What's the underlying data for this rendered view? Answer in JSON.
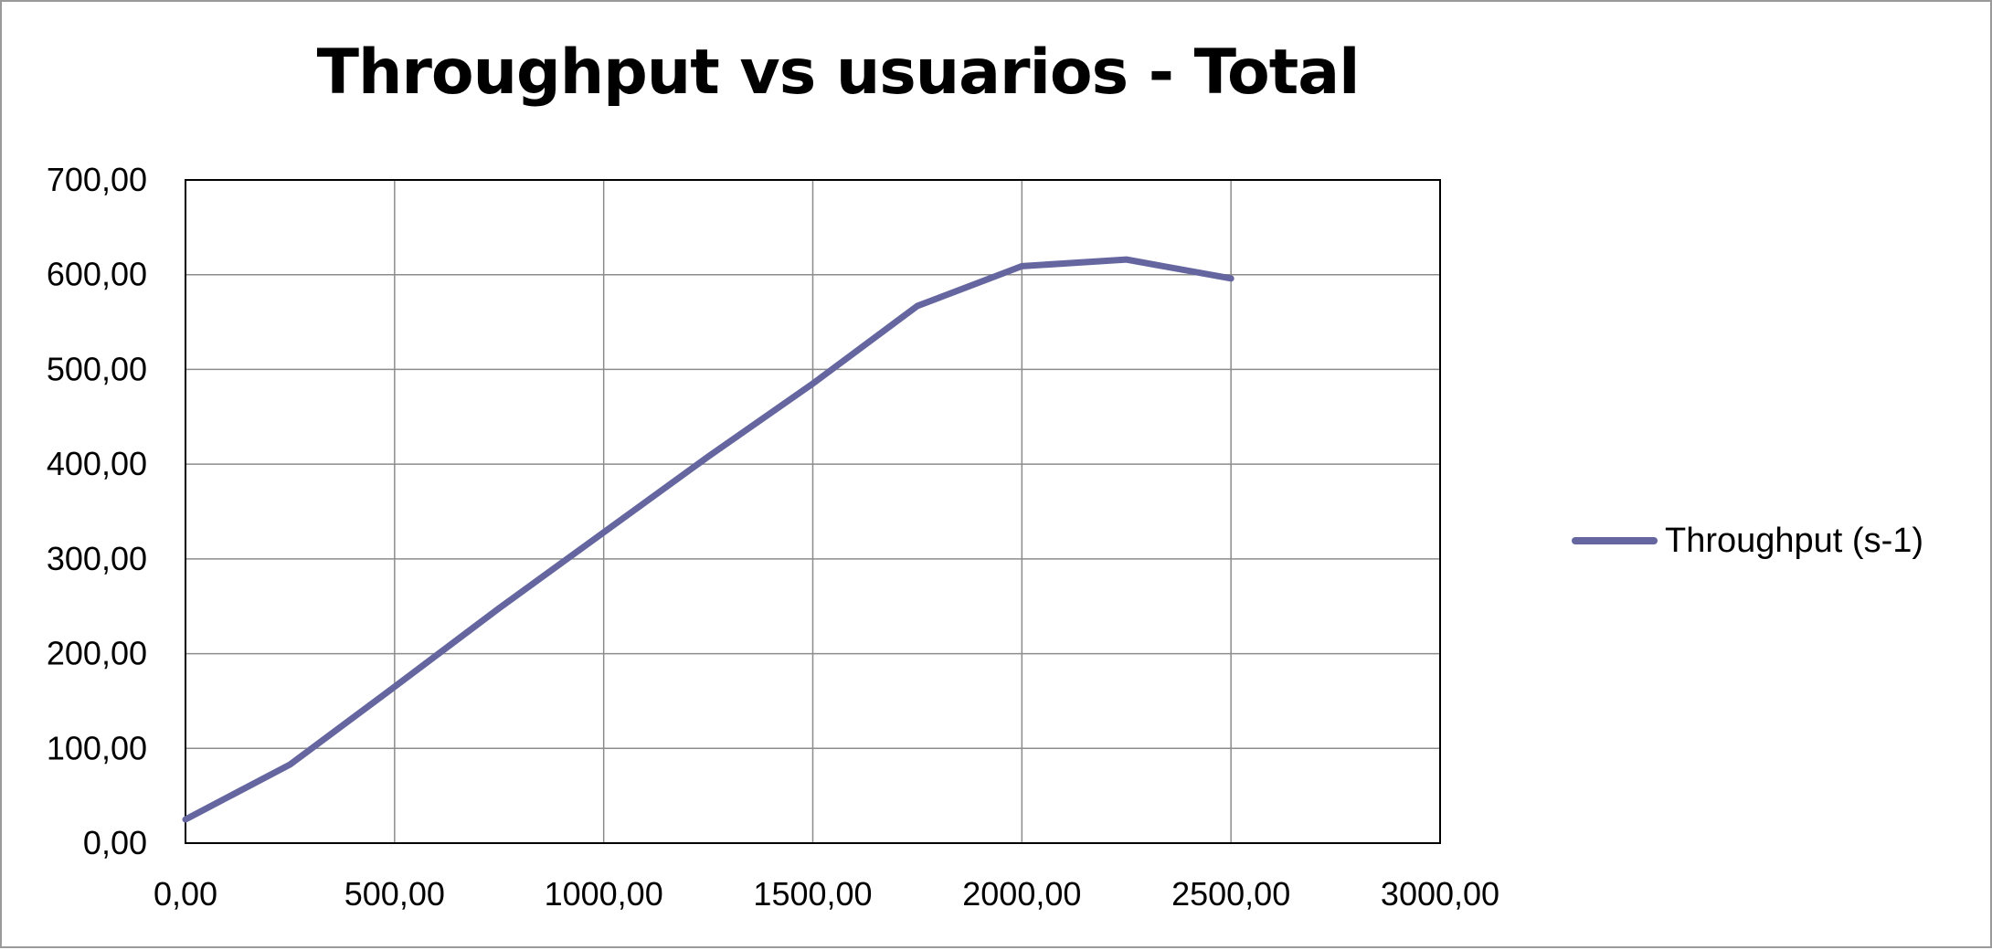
{
  "chart_data": {
    "type": "line",
    "title": "Throughput vs usuarios - Total",
    "xlabel": "",
    "ylabel": "",
    "xlim": [
      0,
      3000
    ],
    "ylim": [
      0,
      700
    ],
    "x_ticks": [
      "0,00",
      "500,00",
      "1000,00",
      "1500,00",
      "2000,00",
      "2500,00",
      "3000,00"
    ],
    "y_ticks": [
      "0,00",
      "100,00",
      "200,00",
      "300,00",
      "400,00",
      "500,00",
      "600,00",
      "700,00"
    ],
    "grid": true,
    "legend_position": "right",
    "series": [
      {
        "name": "Throughput (s-1)",
        "color": "#6566a0",
        "x": [
          0,
          250,
          500,
          750,
          1000,
          1250,
          1500,
          1750,
          2000,
          2250,
          2500
        ],
        "y": [
          25,
          83,
          165,
          248,
          328,
          408,
          485,
          567,
          609,
          616,
          596
        ]
      }
    ]
  }
}
